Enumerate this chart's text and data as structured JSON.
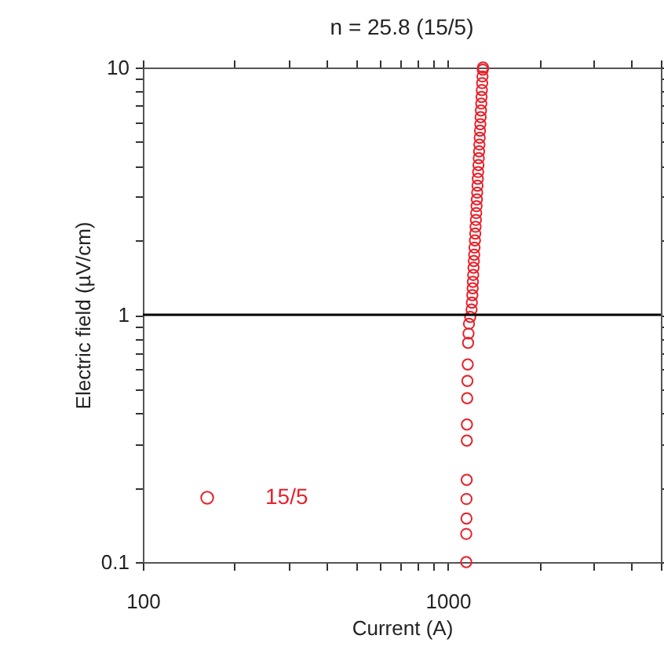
{
  "chart_data": {
    "type": "scatter",
    "title": "n = 25.8 (15/5)",
    "xlabel": "Current (A)",
    "ylabel": "Electric field (µV/cm)",
    "log": "xy",
    "grid": false,
    "legend": "bottom left",
    "marker": "circle",
    "xlim": [
      100,
      5000
    ],
    "ylim": [
      0.1,
      10
    ],
    "xticks": [
      100,
      {
        "value": 200,
        "label": null
      },
      {
        "value": 300,
        "label": null
      },
      {
        "value": 400,
        "label": null
      },
      {
        "value": 500,
        "label": null
      },
      {
        "value": 600,
        "label": null
      },
      {
        "value": 700,
        "label": null
      },
      {
        "value": 800,
        "label": null
      },
      {
        "value": 900,
        "label": null
      },
      1000,
      {
        "value": 2000,
        "label": null
      },
      {
        "value": 3000,
        "label": null
      },
      {
        "value": 4000,
        "label": null
      },
      {
        "value": 5000,
        "label": null
      }
    ],
    "yticks": [
      0.1,
      {
        "value": 0.2,
        "label": null
      },
      {
        "value": 0.3,
        "label": null
      },
      {
        "value": 0.4,
        "label": null
      },
      {
        "value": 0.5,
        "label": null
      },
      {
        "value": 0.6,
        "label": null
      },
      {
        "value": 0.7,
        "label": null
      },
      {
        "value": 0.8,
        "label": null
      },
      {
        "value": 0.9,
        "label": null
      },
      1,
      {
        "value": 2,
        "label": null
      },
      {
        "value": 3,
        "label": null
      },
      {
        "value": 4,
        "label": null
      },
      {
        "value": 5,
        "label": null
      },
      {
        "value": 6,
        "label": null
      },
      {
        "value": 7,
        "label": null
      },
      {
        "value": 8,
        "label": null
      },
      {
        "value": 9,
        "label": null
      },
      10
    ],
    "ref_lines": [
      {
        "axis": "y",
        "value": 1,
        "label": null,
        "color": "#000000",
        "line_style": "solid"
      }
    ],
    "series": [
      {
        "name": "15/5",
        "color": "#e8202a",
        "x": [
          1150,
          1150,
          1152,
          1152,
          1154,
          1155,
          1156,
          1158,
          1160,
          1163,
          1166,
          1170,
          1174,
          1185,
          1197,
          1200,
          1204,
          1207,
          1209,
          1212,
          1215,
          1218,
          1221,
          1224,
          1228,
          1231,
          1234,
          1237,
          1240,
          1243,
          1246,
          1249,
          1252,
          1255,
          1258,
          1261,
          1264,
          1267,
          1270,
          1273,
          1276,
          1279,
          1282,
          1285,
          1288,
          1291,
          1294,
          1297,
          1300,
          1303,
          1305
        ],
        "values": [
          0.1,
          0.13,
          0.15,
          0.18,
          0.215,
          0.31,
          0.36,
          0.46,
          0.54,
          0.63,
          0.77,
          0.84,
          0.92,
          0.98,
          1.05,
          1.12,
          1.2,
          1.28,
          1.36,
          1.45,
          1.55,
          1.65,
          1.75,
          1.87,
          2.0,
          2.13,
          2.27,
          2.42,
          2.58,
          2.75,
          2.93,
          3.12,
          3.33,
          3.55,
          3.78,
          4.03,
          4.3,
          4.58,
          4.88,
          5.2,
          5.55,
          5.9,
          6.3,
          6.7,
          7.15,
          7.6,
          8.1,
          8.65,
          9.2,
          9.8,
          10
        ]
      }
    ]
  }
}
